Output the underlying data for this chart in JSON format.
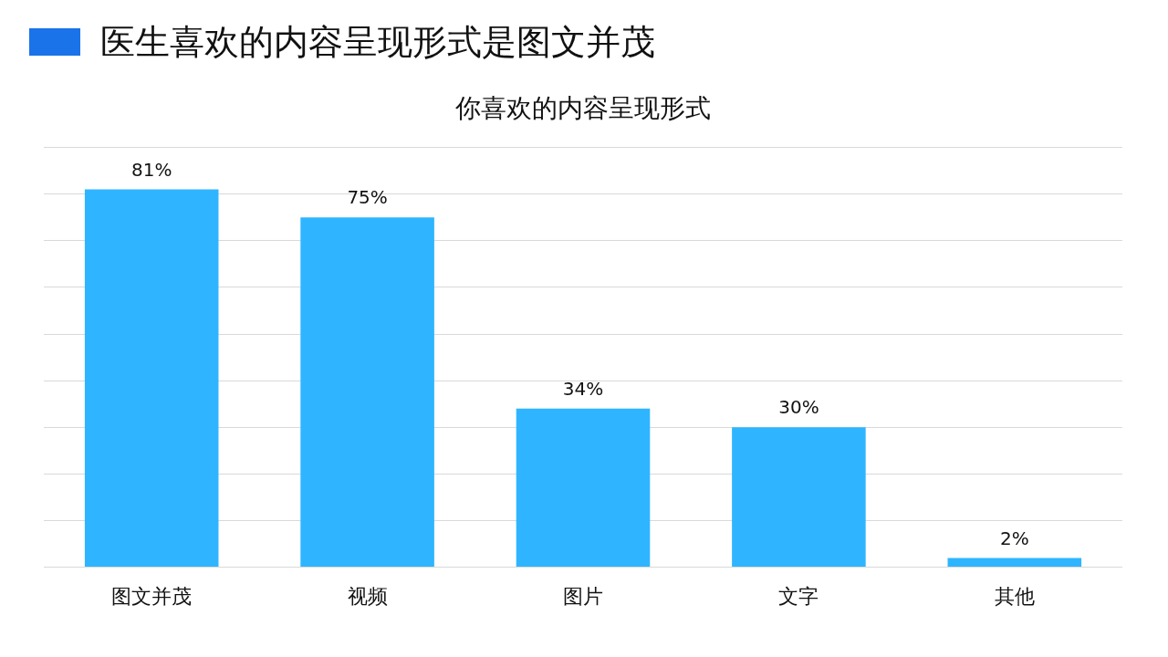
{
  "chart_data": {
    "type": "bar",
    "title": "医生喜欢的内容呈现形式是图文并茂",
    "subtitle": "你喜欢的内容呈现形式",
    "categories": [
      "图文并茂",
      "视频",
      "图片",
      "文字",
      "其他"
    ],
    "series": [
      {
        "color": "#2fb5ff",
        "values": [
          81,
          75,
          34,
          30,
          2
        ],
        "value_labels": [
          "81%",
          "75%",
          "34%",
          "30%",
          "2%"
        ]
      }
    ],
    "ylim": [
      0,
      90
    ],
    "yticks": [
      {
        "value": 0,
        "label": null
      },
      {
        "value": 10,
        "label": null
      },
      {
        "value": 20,
        "label": null
      },
      {
        "value": 30,
        "label": null
      },
      {
        "value": 40,
        "label": null
      },
      {
        "value": 50,
        "label": null
      },
      {
        "value": 60,
        "label": null
      },
      {
        "value": 70,
        "label": null
      },
      {
        "value": 80,
        "label": null
      },
      {
        "value": 90,
        "label": null
      }
    ],
    "grid": "y",
    "legend": false,
    "tick_labels": "x"
  }
}
